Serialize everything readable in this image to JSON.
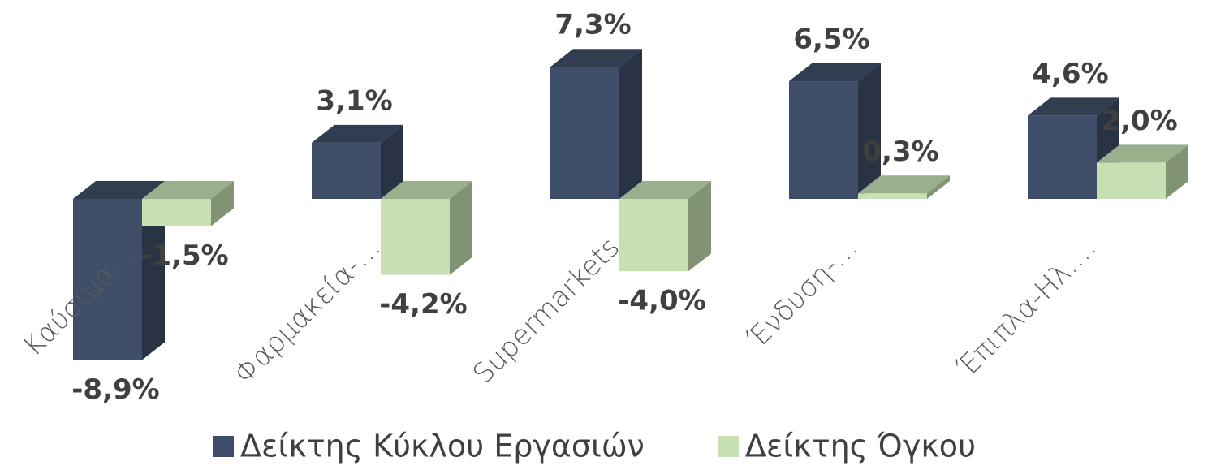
{
  "chart_data": {
    "type": "bar3d",
    "categories": [
      "Καύσιμα-…",
      "Φαρμακεία-…",
      "Supermarkets",
      "Ένδυση-…",
      "Έπιπλα-Ηλ.…"
    ],
    "series": [
      {
        "name": "Δείκτης Κύκλου Εργασιών",
        "color": "#3f4e68",
        "values": [
          -8.9,
          3.1,
          7.3,
          6.5,
          4.6
        ],
        "value_labels": [
          "-8,9%",
          "3,1%",
          "7,3%",
          "6,5%",
          "4,6%"
        ]
      },
      {
        "name": "Δείκτης Όγκου",
        "color": "#c6e0b4",
        "values": [
          -1.5,
          -4.2,
          -4.0,
          0.3,
          2.0
        ],
        "value_labels": [
          "-1,5%",
          "-4,2%",
          "-4,0%",
          "0,3%",
          "2,0%"
        ]
      }
    ],
    "legend": "bottom"
  }
}
